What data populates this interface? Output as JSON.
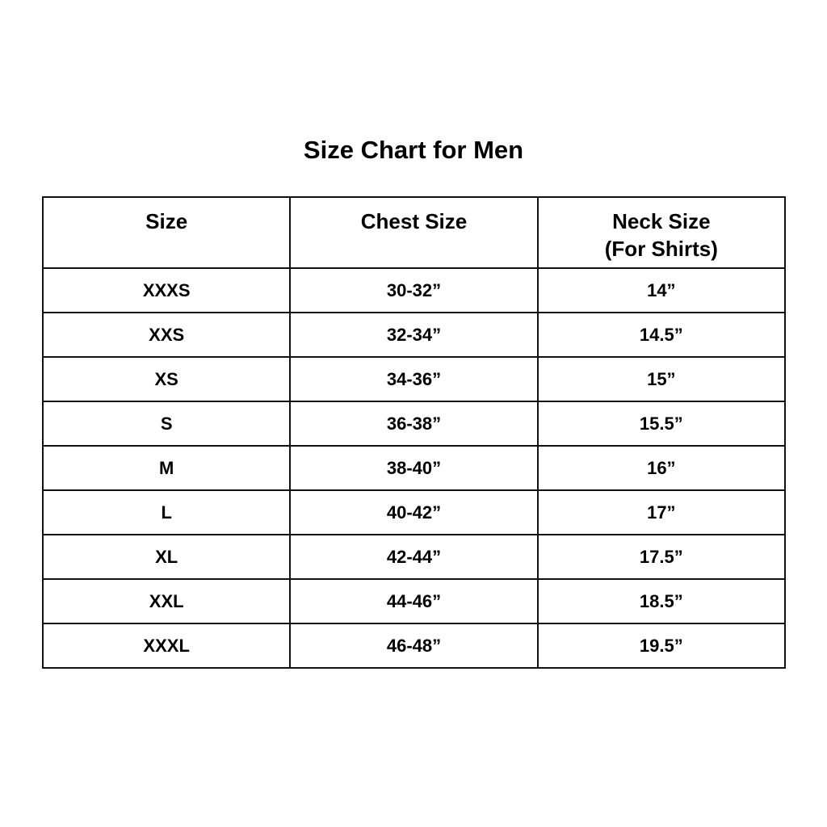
{
  "title": "Size Chart for Men",
  "headers": [
    {
      "line1": "Size",
      "line2": ""
    },
    {
      "line1": "Chest Size",
      "line2": ""
    },
    {
      "line1": "Neck Size",
      "line2": "(For Shirts)"
    }
  ],
  "rows": [
    [
      "XXXS",
      "30-32”",
      "14”"
    ],
    [
      "XXS",
      "32-34”",
      "14.5”"
    ],
    [
      "XS",
      "34-36”",
      "15”"
    ],
    [
      "S",
      "36-38”",
      "15.5”"
    ],
    [
      "M",
      "38-40”",
      "16”"
    ],
    [
      "L",
      "40-42”",
      "17”"
    ],
    [
      "XL",
      "42-44”",
      "17.5”"
    ],
    [
      "XXL",
      "44-46”",
      "18.5”"
    ],
    [
      "XXXL",
      "46-48”",
      "19.5”"
    ]
  ]
}
